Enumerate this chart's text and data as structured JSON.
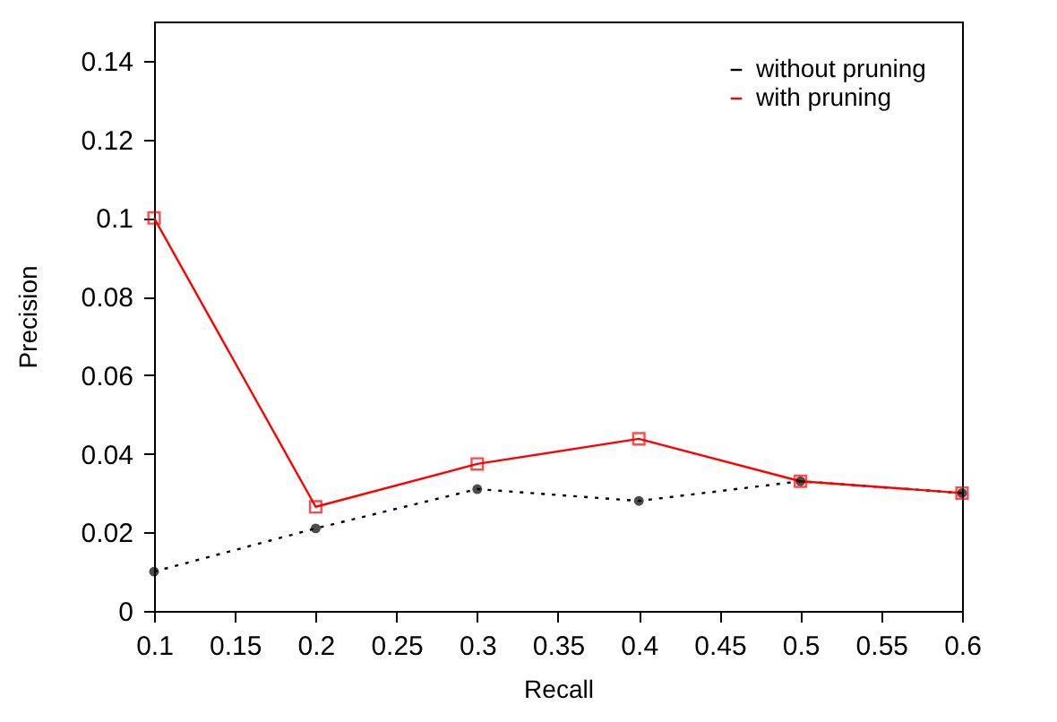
{
  "chart_data": {
    "type": "line",
    "xlabel": "Recall",
    "ylabel": "Precision",
    "x": [
      0.1,
      0.2,
      0.3,
      0.4,
      0.5,
      0.6
    ],
    "series": [
      {
        "name": "without pruning",
        "color": "#000000",
        "marker": "circle",
        "line_style": "dotted",
        "values": [
          0.01,
          0.021,
          0.031,
          0.028,
          0.033,
          0.03
        ]
      },
      {
        "name": "with pruning",
        "color": "#ff0000",
        "marker": "square",
        "line_style": "solid",
        "values": [
          0.1,
          0.0265,
          0.0374,
          0.0438,
          0.033,
          0.03
        ]
      }
    ],
    "xlim": [
      0.1,
      0.6
    ],
    "xticks": [
      0.1,
      0.15,
      0.2,
      0.25,
      0.3,
      0.35,
      0.4,
      0.45,
      0.5,
      0.55,
      0.6
    ],
    "ylim": [
      0,
      0.15
    ],
    "yticks": [
      0,
      0.02,
      0.04,
      0.06,
      0.08,
      0.1,
      0.12,
      0.14
    ],
    "grid": false,
    "legend": "top right"
  }
}
